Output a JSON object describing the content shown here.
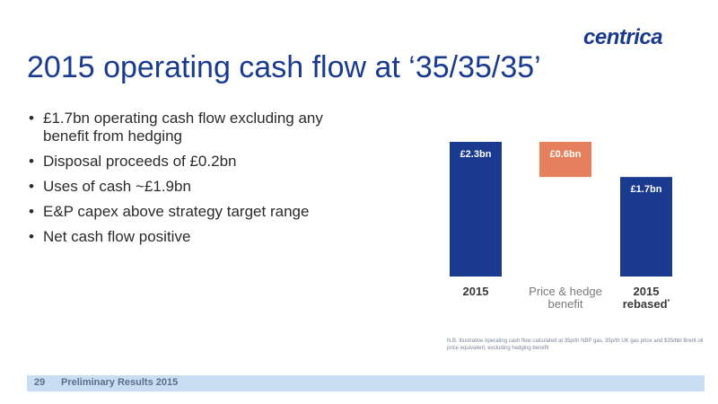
{
  "logo": "centrica",
  "title": "2015 operating cash flow at ‘35/35/35’",
  "bullets": [
    "£1.7bn operating cash flow excluding any benefit from hedging",
    "Disposal proceeds of £0.2bn",
    "Uses of cash ~£1.9bn",
    "E&P capex above strategy target range",
    "Net cash flow positive"
  ],
  "bullet_marker": "•",
  "footnote": "N.B. Illustrative operating cash flow calculated at 35p/th NBP gas, 35p/th UK gas price and $35/bbl Brent oil price equivalent, excluding hedging benefit",
  "footer": {
    "page": "29",
    "text": "Preliminary Results 2015"
  },
  "chart_data": {
    "type": "bar",
    "subtype": "waterfall",
    "categories": [
      "2015",
      "Price & hedge benefit",
      "2015 rebased"
    ],
    "category_lines": [
      [
        "2015"
      ],
      [
        "Price & hedge",
        "benefit"
      ],
      [
        "2015",
        "rebased"
      ]
    ],
    "category_marks": [
      "",
      "",
      "*"
    ],
    "values": [
      2.3,
      -0.6,
      1.7
    ],
    "data_labels": [
      "£2.3bn",
      "£0.6bn",
      "£1.7bn"
    ],
    "colors": {
      "total": "#1a3a8f",
      "change": "#e57f5c"
    },
    "ylim": [
      0,
      2.3
    ]
  }
}
